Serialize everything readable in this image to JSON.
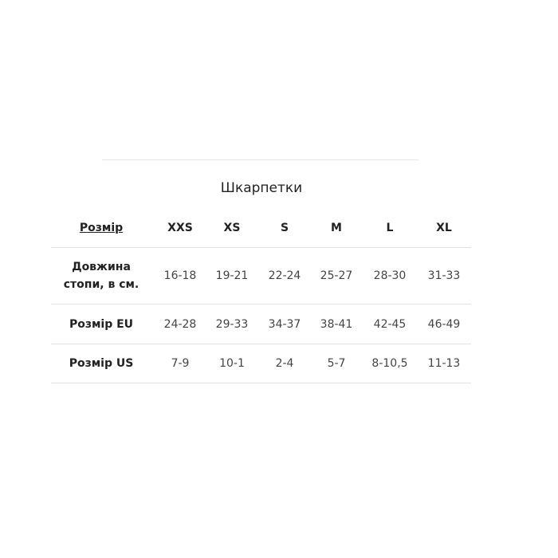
{
  "title": "Шкарпетки",
  "table": {
    "header": {
      "label": "Розмір",
      "sizes": [
        "XXS",
        "XS",
        "S",
        "M",
        "L",
        "XL"
      ]
    },
    "rows": [
      {
        "label": "Довжина стопи, в см.",
        "values": [
          "16-18",
          "19-21",
          "22-24",
          "25-27",
          "28-30",
          "31-33"
        ]
      },
      {
        "label": "Розмір EU",
        "values": [
          "24-28",
          "29-33",
          "34-37",
          "38-41",
          "42-45",
          "46-49"
        ]
      },
      {
        "label": "Розмір US",
        "values": [
          "7-9",
          "10-1",
          "2-4",
          "5-7",
          "8-10,5",
          "11-13"
        ]
      }
    ]
  }
}
